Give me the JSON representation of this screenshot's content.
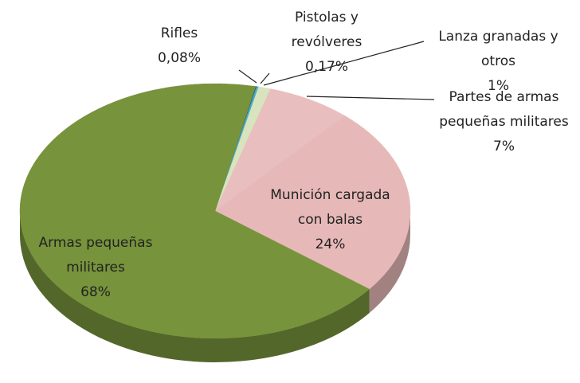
{
  "chart_data": {
    "type": "pie",
    "categories": [
      "Rifles",
      "Pistolas y revólveres",
      "Lanza granadas y otros",
      "Partes de armas pequeñas militares",
      "Munición cargada con balas",
      "Armas pequeñas militares"
    ],
    "values": [
      0.08,
      0.17,
      1,
      7,
      24,
      68
    ],
    "value_labels": [
      "0,08%",
      "0,17%",
      "1%",
      "7%",
      "24%",
      "68%"
    ],
    "colors": [
      "#1f497d",
      "#4bacc6",
      "#d7e4bd",
      "#e8bfbe",
      "#e6b9b8",
      "#77933c"
    ]
  }
}
